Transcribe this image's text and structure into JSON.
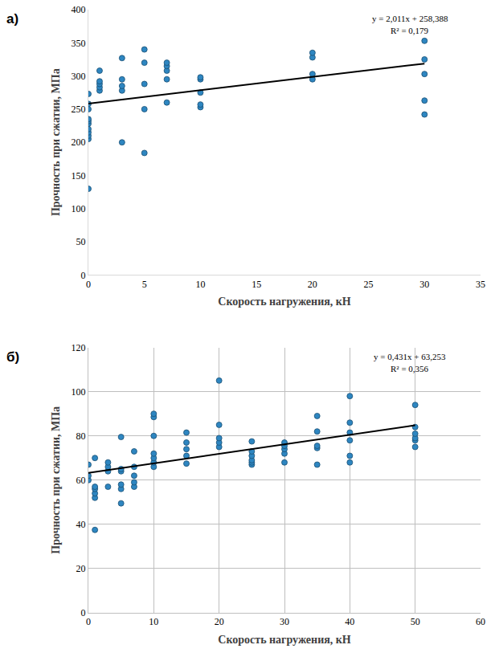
{
  "chart_data": [
    {
      "type": "scatter",
      "label": "а)",
      "x_label": "Скорость нагружения, кН",
      "y_label": "Прочность при сжатии, МПа",
      "annotations": [
        "y = 2,011x + 258,388",
        "R² = 0,179"
      ],
      "xlim": [
        0,
        35
      ],
      "xticks": [
        0,
        5,
        10,
        15,
        20,
        25,
        30,
        35
      ],
      "ylim": [
        0,
        400
      ],
      "yticks": [
        0,
        50,
        100,
        150,
        200,
        250,
        300,
        350,
        400
      ],
      "grid": false,
      "series": [
        {
          "type": "scatter",
          "color": "#2e86c1",
          "marker": "circle",
          "x": [
            0,
            0,
            0,
            0,
            0,
            0,
            0,
            0,
            0,
            0,
            0,
            1,
            1,
            1,
            1,
            1,
            3,
            3,
            3,
            3,
            3,
            5,
            5,
            5,
            5,
            5,
            7,
            7,
            7,
            7,
            7,
            10,
            10,
            10,
            10,
            10,
            20,
            20,
            20,
            20,
            30,
            30,
            30,
            30,
            30
          ],
          "values": [
            130,
            205,
            210,
            215,
            220,
            228,
            232,
            235,
            250,
            258,
            273,
            278,
            283,
            288,
            292,
            308,
            200,
            278,
            285,
            295,
            327,
            184,
            250,
            288,
            320,
            340,
            260,
            295,
            308,
            315,
            320,
            253,
            257,
            275,
            295,
            298,
            295,
            303,
            328,
            335,
            242,
            263,
            303,
            325,
            353
          ]
        },
        {
          "type": "line",
          "color": "#000000",
          "line_style": "solid",
          "x": [
            0,
            30
          ],
          "values": [
            258.388,
            318.718
          ]
        }
      ]
    },
    {
      "type": "scatter",
      "label": "б)",
      "x_label": "Скорость нагружения, кН",
      "y_label": "Прочность при сжатии, МПа",
      "annotations": [
        "y = 0,431x + 63,253",
        "R² = 0,356"
      ],
      "xlim": [
        0,
        60
      ],
      "xticks": [
        0,
        10,
        20,
        30,
        40,
        50,
        60
      ],
      "ylim": [
        0,
        120
      ],
      "yticks": [
        0,
        20,
        40,
        60,
        80,
        100,
        120
      ],
      "grid": true,
      "series": [
        {
          "type": "scatter",
          "color": "#2e86c1",
          "marker": "circle",
          "x": [
            0,
            0,
            0,
            1,
            1,
            1,
            1,
            1,
            1,
            3,
            3,
            3,
            3,
            5,
            5,
            5,
            5,
            5,
            5,
            7,
            7,
            7,
            7,
            7,
            10,
            10,
            10,
            10,
            10,
            10,
            10,
            15,
            15,
            15,
            15,
            15,
            20,
            20,
            20,
            20,
            20,
            25,
            25,
            25,
            25,
            25,
            25,
            30,
            30,
            30,
            30,
            30,
            35,
            35,
            35,
            35,
            35,
            40,
            40,
            40,
            40,
            40,
            40,
            50,
            50,
            50,
            50,
            50,
            50
          ],
          "values": [
            60,
            62,
            67,
            37.5,
            52,
            54,
            56,
            57,
            70,
            57,
            64,
            66,
            68,
            49.5,
            56,
            58,
            64,
            65,
            79.5,
            57,
            59,
            62,
            66,
            73,
            66,
            68,
            70,
            72,
            80,
            88.5,
            90,
            67.5,
            71,
            74,
            77,
            81.5,
            75,
            77,
            79,
            85,
            105,
            67,
            68,
            69,
            71,
            73,
            77.5,
            68,
            72,
            74,
            75.5,
            77,
            67,
            74.5,
            75.5,
            82,
            89,
            68,
            71,
            78,
            81.5,
            86,
            98,
            75,
            78,
            79,
            81,
            84,
            94
          ]
        },
        {
          "type": "line",
          "color": "#000000",
          "line_style": "solid",
          "x": [
            0,
            50
          ],
          "values": [
            63.253,
            84.803
          ]
        }
      ]
    }
  ]
}
